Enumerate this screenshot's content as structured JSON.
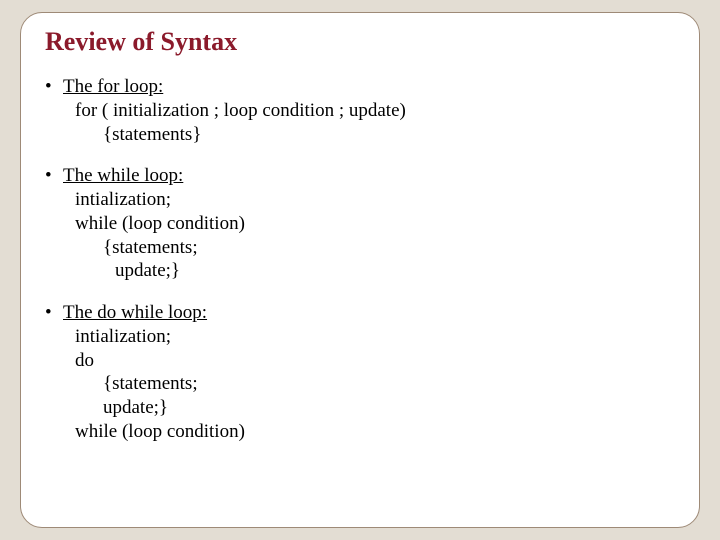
{
  "slide": {
    "background_color": "#e3ddd3",
    "frame": {
      "background_color": "#ffffff",
      "border_color": "#9e8a77",
      "border_radius": 22
    },
    "title": {
      "text": "Review of Syntax",
      "color": "#8b1a2b",
      "fontsize": 26,
      "font_weight": "bold"
    },
    "body_fontsize": 19,
    "body_color": "#000000",
    "bullets": [
      {
        "header": "The for loop:",
        "lines": [
          {
            "text": "for ( initialization ; loop condition ; update)",
            "indent": 1
          },
          {
            "text": "{statements}",
            "indent": 2
          }
        ]
      },
      {
        "header": "The while loop:",
        "lines": [
          {
            "text": "intialization;",
            "indent": 1
          },
          {
            "text": "while (loop condition)",
            "indent": 1
          },
          {
            "text": "{statements;",
            "indent": 2
          },
          {
            "text": "update;}",
            "indent": 3
          }
        ]
      },
      {
        "header": "The do while loop:",
        "lines": [
          {
            "text": "intialization;",
            "indent": 1
          },
          {
            "text": "do",
            "indent": 1
          },
          {
            "text": "{statements;",
            "indent": 2
          },
          {
            "text": "update;}",
            "indent": 2
          },
          {
            "text": "while (loop condition)",
            "indent": 1
          }
        ]
      }
    ],
    "bullet_char": "•"
  }
}
